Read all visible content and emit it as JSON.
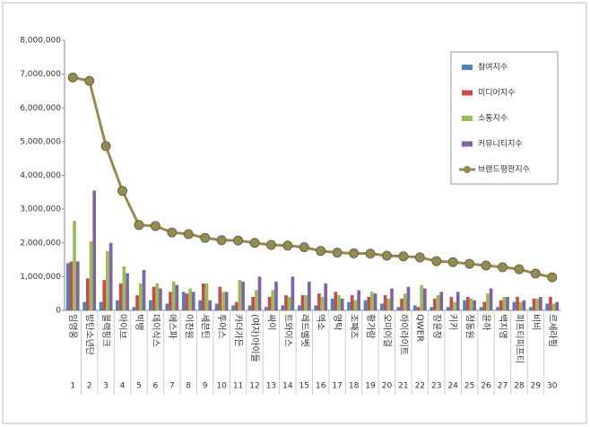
{
  "chart_data": {
    "type": "bar",
    "categories": [
      "임영웅",
      "방탄소년단",
      "블랙핑크",
      "아이브",
      "빅뱅",
      "데이식스",
      "에스파",
      "이찬원",
      "세븐틴",
      "투어스",
      "카더가든",
      "(여자)아이들",
      "싸이",
      "트와이스",
      "레드벨벳",
      "엑소",
      "영탁",
      "조째즈",
      "황가람",
      "오마이걸",
      "하이라이트",
      "QWER",
      "장윤정",
      "키키",
      "정동원",
      "윤하",
      "백지영",
      "피프티피프티",
      "비비",
      "르세라핌"
    ],
    "ranks": [
      1,
      2,
      3,
      4,
      5,
      6,
      7,
      8,
      9,
      10,
      11,
      12,
      13,
      14,
      15,
      16,
      17,
      18,
      19,
      20,
      21,
      22,
      23,
      24,
      25,
      26,
      27,
      28,
      29,
      30
    ],
    "ylim": [
      0,
      8000000
    ],
    "yticks": [
      {
        "value": 0,
        "label": "0"
      },
      {
        "value": 1000000,
        "label": "1,000,000"
      },
      {
        "value": 2000000,
        "label": "2,000,000"
      },
      {
        "value": 3000000,
        "label": "3,000,000"
      },
      {
        "value": 4000000,
        "label": "4,000,000"
      },
      {
        "value": 5000000,
        "label": "5,000,000"
      },
      {
        "value": 6000000,
        "label": "6,000,000"
      },
      {
        "value": 7000000,
        "label": "7,000,000"
      },
      {
        "value": 8000000,
        "label": "8,000,000"
      }
    ],
    "grid": false,
    "series": [
      {
        "name": "참여지수",
        "color": "#4f81bd",
        "values": [
          1400000,
          250000,
          250000,
          300000,
          100000,
          300000,
          200000,
          550000,
          300000,
          200000,
          150000,
          150000,
          100000,
          150000,
          150000,
          150000,
          350000,
          250000,
          300000,
          200000,
          100000,
          150000,
          100000,
          100000,
          300000,
          100000,
          100000,
          250000,
          100000,
          200000
        ]
      },
      {
        "name": "미디어지수",
        "color": "#c0504d",
        "values": [
          1450000,
          950000,
          900000,
          800000,
          450000,
          700000,
          550000,
          500000,
          800000,
          700000,
          250000,
          400000,
          400000,
          450000,
          450000,
          500000,
          550000,
          450000,
          400000,
          450000,
          350000,
          100000,
          350000,
          400000,
          400000,
          250000,
          300000,
          400000,
          350000,
          400000
        ]
      },
      {
        "name": "소통지수",
        "color": "#9bbb59",
        "values": [
          2650000,
          2050000,
          1750000,
          1300000,
          800000,
          800000,
          850000,
          650000,
          800000,
          550000,
          900000,
          600000,
          600000,
          400000,
          450000,
          400000,
          450000,
          300000,
          550000,
          350000,
          500000,
          750000,
          450000,
          250000,
          350000,
          500000,
          400000,
          250000,
          350000,
          200000
        ]
      },
      {
        "name": "커뮤니티지수",
        "color": "#8064a2",
        "values": [
          1450000,
          3550000,
          2000000,
          1100000,
          1200000,
          650000,
          750000,
          550000,
          300000,
          550000,
          850000,
          1000000,
          850000,
          1000000,
          850000,
          800000,
          350000,
          600000,
          500000,
          650000,
          700000,
          650000,
          550000,
          550000,
          300000,
          650000,
          400000,
          300000,
          400000,
          250000
        ]
      },
      {
        "name": "브랜드평판지수",
        "color": "#948a54",
        "type": "line",
        "values": [
          6900000,
          6800000,
          4870000,
          3540000,
          2530000,
          2500000,
          2310000,
          2260000,
          2150000,
          2080000,
          2070000,
          2000000,
          1940000,
          1920000,
          1870000,
          1760000,
          1710000,
          1690000,
          1680000,
          1620000,
          1600000,
          1570000,
          1460000,
          1430000,
          1380000,
          1330000,
          1280000,
          1220000,
          1090000,
          980000
        ]
      }
    ]
  }
}
